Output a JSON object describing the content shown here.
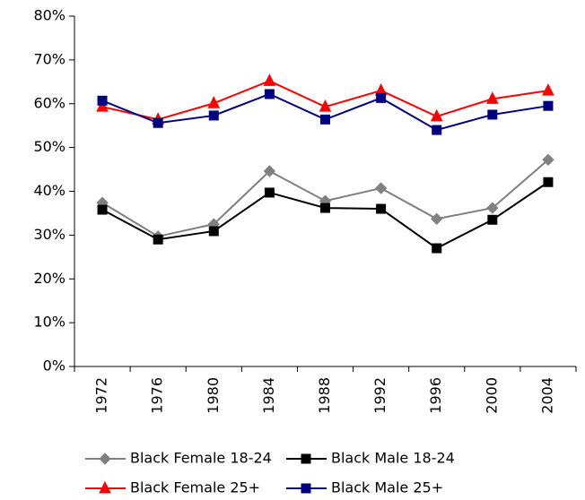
{
  "chart_data": {
    "type": "line",
    "categories": [
      "1972",
      "1976",
      "1980",
      "1984",
      "1988",
      "1992",
      "1996",
      "2000",
      "2004"
    ],
    "series": [
      {
        "name": "Black Female 18-24",
        "color": "#808080",
        "marker": "diamond",
        "values": [
          37.4,
          29.7,
          32.5,
          44.6,
          37.8,
          40.7,
          33.7,
          36.2,
          47.2
        ]
      },
      {
        "name": "Black Male 18-24",
        "color": "#000000",
        "marker": "square",
        "values": [
          35.8,
          29.0,
          30.9,
          39.7,
          36.2,
          36.0,
          27.0,
          33.5,
          42.1
        ]
      },
      {
        "name": "Black Female 25+",
        "color": "#ff0000",
        "marker": "triangle",
        "values": [
          59.3,
          56.4,
          60.1,
          65.2,
          59.3,
          63.0,
          57.1,
          61.1,
          63.0
        ]
      },
      {
        "name": "Black Male 25+",
        "color": "#000080",
        "marker": "square",
        "values": [
          60.7,
          55.6,
          57.3,
          62.2,
          56.4,
          61.3,
          54.0,
          57.5,
          59.5
        ]
      }
    ],
    "ylim": [
      0,
      80
    ],
    "yticks": [
      {
        "value": 0,
        "label": "0%"
      },
      {
        "value": 10,
        "label": "10%"
      },
      {
        "value": 20,
        "label": "20%"
      },
      {
        "value": 30,
        "label": "30%"
      },
      {
        "value": 40,
        "label": "40%"
      },
      {
        "value": 50,
        "label": "50%"
      },
      {
        "value": 60,
        "label": "60%"
      },
      {
        "value": 70,
        "label": "70%"
      },
      {
        "value": 80,
        "label": "80%"
      }
    ],
    "grid": false,
    "legend": "bottom"
  }
}
